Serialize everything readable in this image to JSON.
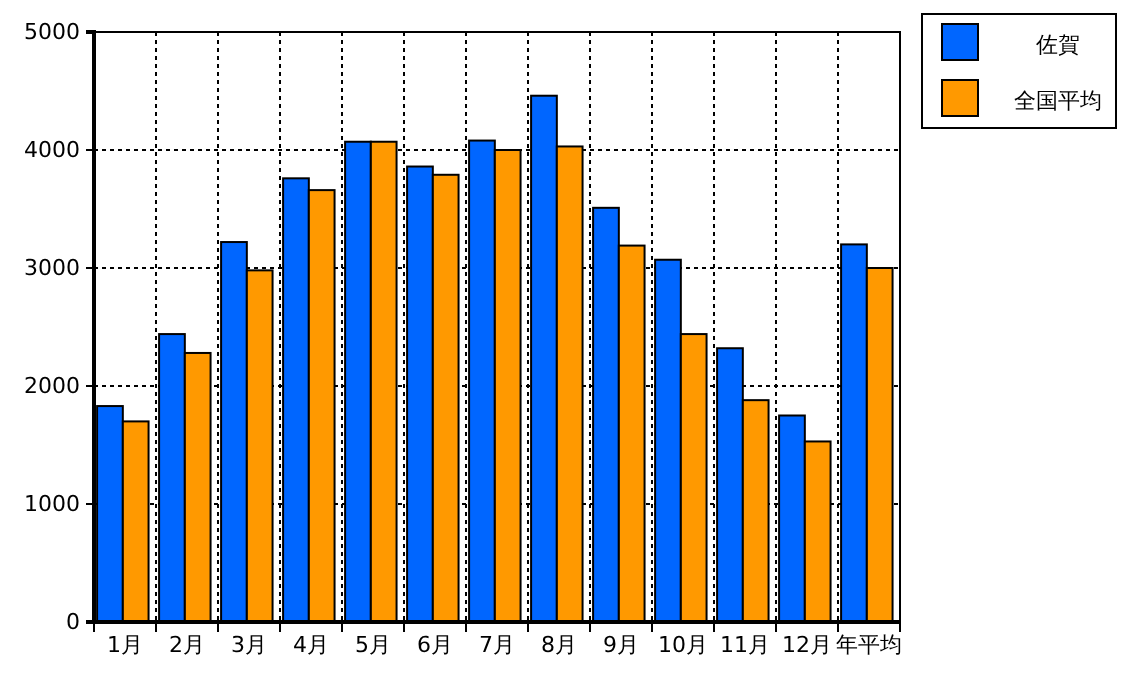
{
  "chart_data": {
    "type": "bar",
    "categories": [
      "1月",
      "2月",
      "3月",
      "4月",
      "5月",
      "6月",
      "7月",
      "8月",
      "9月",
      "10月",
      "11月",
      "12月",
      "年平均"
    ],
    "series": [
      {
        "name": "佐賀",
        "color": "#0066ff",
        "values": [
          1830,
          2440,
          3220,
          3760,
          4070,
          3860,
          4080,
          4460,
          3510,
          3070,
          2320,
          1750,
          3200
        ]
      },
      {
        "name": "全国平均",
        "color": "#ff9900",
        "values": [
          1700,
          2280,
          2980,
          3660,
          4070,
          3790,
          4000,
          4030,
          3190,
          2440,
          1880,
          1530,
          3000
        ]
      }
    ],
    "ylim": [
      0,
      5000
    ],
    "yticks": [
      0,
      1000,
      2000,
      3000,
      4000,
      5000
    ],
    "grid": true,
    "legend": "top right"
  }
}
